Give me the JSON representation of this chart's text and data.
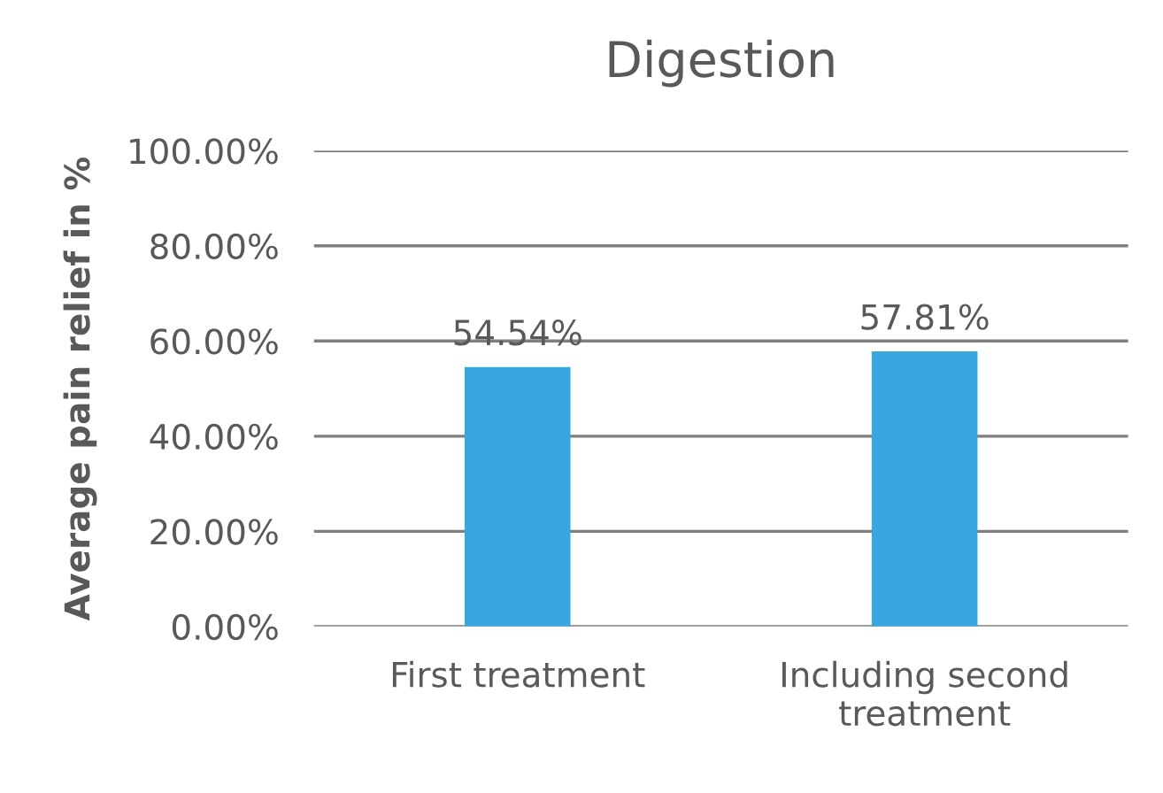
{
  "chart_data": {
    "type": "bar",
    "title": "Digestion",
    "ylabel": "Average pain relief in %",
    "categories": [
      "First treatment",
      "Including second treatment"
    ],
    "values": [
      54.54,
      57.81
    ],
    "color": "#3aa6e0",
    "value_labels": [
      "54.54%",
      "57.81%"
    ],
    "ylim": [
      0,
      100
    ],
    "yticks": [
      {
        "value": 0,
        "label": "0.00%"
      },
      {
        "value": 20,
        "label": "20.00%"
      },
      {
        "value": 40,
        "label": "40.00%"
      },
      {
        "value": 60,
        "label": "60.00%"
      },
      {
        "value": 80,
        "label": "80.00%"
      },
      {
        "value": 100,
        "label": "100.00%"
      }
    ],
    "grid": "y",
    "legend": false
  }
}
